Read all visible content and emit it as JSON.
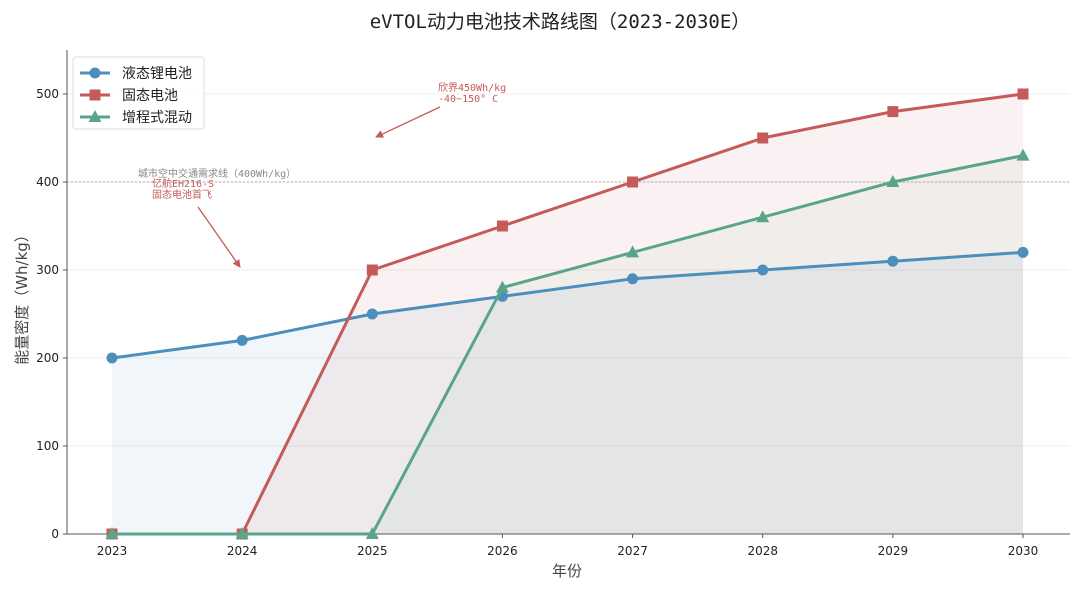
{
  "chart_data": {
    "type": "line",
    "title": "eVTOL动力电池技术路线图（2023-2030E）",
    "xlabel": "年份",
    "ylabel": "能量密度（Wh/kg）",
    "categories": [
      "2023",
      "2024",
      "2025",
      "2026",
      "2027",
      "2028",
      "2029",
      "2030"
    ],
    "ylim": [
      0,
      550
    ],
    "yticks": [
      0,
      100,
      200,
      300,
      400,
      500
    ],
    "grid": "horizontal",
    "legend_position": "top-left",
    "series": [
      {
        "name": "液态锂电池",
        "color": "#4c8fbd",
        "marker": "circle",
        "values": [
          200,
          220,
          250,
          270,
          290,
          300,
          310,
          320
        ]
      },
      {
        "name": "固态电池",
        "color": "#c55a5a",
        "marker": "square",
        "values": [
          0,
          0,
          300,
          350,
          400,
          450,
          480,
          500
        ]
      },
      {
        "name": "增程式混动",
        "color": "#5aa58a",
        "marker": "triangle",
        "values": [
          0,
          0,
          0,
          280,
          320,
          360,
          400,
          430
        ]
      }
    ],
    "reference_line": {
      "value": 400,
      "label": "城市空中交通需求线（400Wh/kg）",
      "color": "#aaaaaa"
    },
    "annotations": [
      {
        "lines": [
          "欣界450Wh/kg",
          "-40~150° C"
        ],
        "color": "#c55a5a",
        "point_x": "2025",
        "point_y": 450
      },
      {
        "lines": [
          "亿航EH216-S",
          "固态电池首飞"
        ],
        "color": "#c55a5a",
        "point_x": "2024",
        "point_y": 300
      }
    ]
  }
}
